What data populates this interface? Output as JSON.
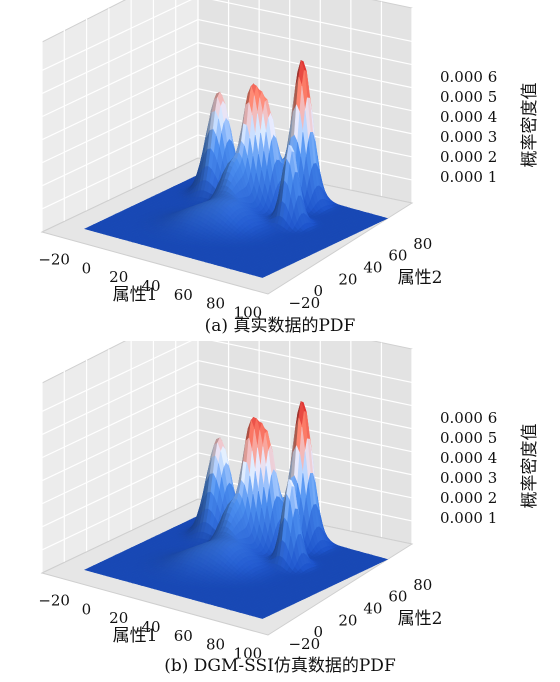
{
  "chart_data": [
    {
      "type": "surface",
      "caption": "(a) 真实数据的PDF",
      "xlabel": "属性1",
      "ylabel": "属性2",
      "zlabel": "概率密度值",
      "xticks": [
        "−20",
        "0",
        "20",
        "40",
        "60",
        "80",
        "100"
      ],
      "yticks": [
        "−20",
        "0",
        "20",
        "40",
        "60",
        "80"
      ],
      "zticks": [
        "0.000 1",
        "0.000 2",
        "0.000 3",
        "0.000 4",
        "0.000 5",
        "0.000 6"
      ],
      "xlim": [
        -30,
        110
      ],
      "ylim": [
        -30,
        95
      ],
      "zlim": [
        0,
        0.00065
      ],
      "peaks": [
        {
          "x": 10,
          "y": 60,
          "z": 0.00045,
          "s": 6
        },
        {
          "x": 50,
          "y": 75,
          "z": 0.00063,
          "s": 5
        },
        {
          "x": 40,
          "y": 60,
          "z": 0.00043,
          "s": 5
        },
        {
          "x": 33,
          "y": 55,
          "z": 0.00038,
          "s": 4
        },
        {
          "x": 62,
          "y": 50,
          "z": 0.00035,
          "s": 4
        },
        {
          "x": 30,
          "y": 45,
          "z": 0.0002,
          "s": 6
        },
        {
          "x": 40,
          "y": 30,
          "z": 0.0001,
          "s": 10
        },
        {
          "x": 25,
          "y": 20,
          "z": 6e-05,
          "s": 10
        }
      ]
    },
    {
      "type": "surface",
      "caption": "(b) DGM-SSI仿真数据的PDF",
      "xlabel": "属性1",
      "ylabel": "属性2",
      "zlabel": "概率密度值",
      "xticks": [
        "−20",
        "0",
        "20",
        "40",
        "60",
        "80",
        "100"
      ],
      "yticks": [
        "−20",
        "0",
        "20",
        "40",
        "60",
        "80"
      ],
      "zticks": [
        "0.000 1",
        "0.000 2",
        "0.000 3",
        "0.000 4",
        "0.000 5",
        "0.000 6"
      ],
      "xlim": [
        -30,
        110
      ],
      "ylim": [
        -30,
        95
      ],
      "zlim": [
        0,
        0.00065
      ],
      "peaks": [
        {
          "x": 10,
          "y": 60,
          "z": 0.00043,
          "s": 6
        },
        {
          "x": 50,
          "y": 75,
          "z": 0.00063,
          "s": 5
        },
        {
          "x": 40,
          "y": 60,
          "z": 0.00047,
          "s": 5
        },
        {
          "x": 33,
          "y": 55,
          "z": 0.0004,
          "s": 4
        },
        {
          "x": 62,
          "y": 50,
          "z": 0.00038,
          "s": 4
        },
        {
          "x": 30,
          "y": 45,
          "z": 0.0002,
          "s": 6
        },
        {
          "x": 40,
          "y": 30,
          "z": 0.0001,
          "s": 10
        },
        {
          "x": 25,
          "y": 20,
          "z": 6e-05,
          "s": 10
        }
      ]
    }
  ]
}
